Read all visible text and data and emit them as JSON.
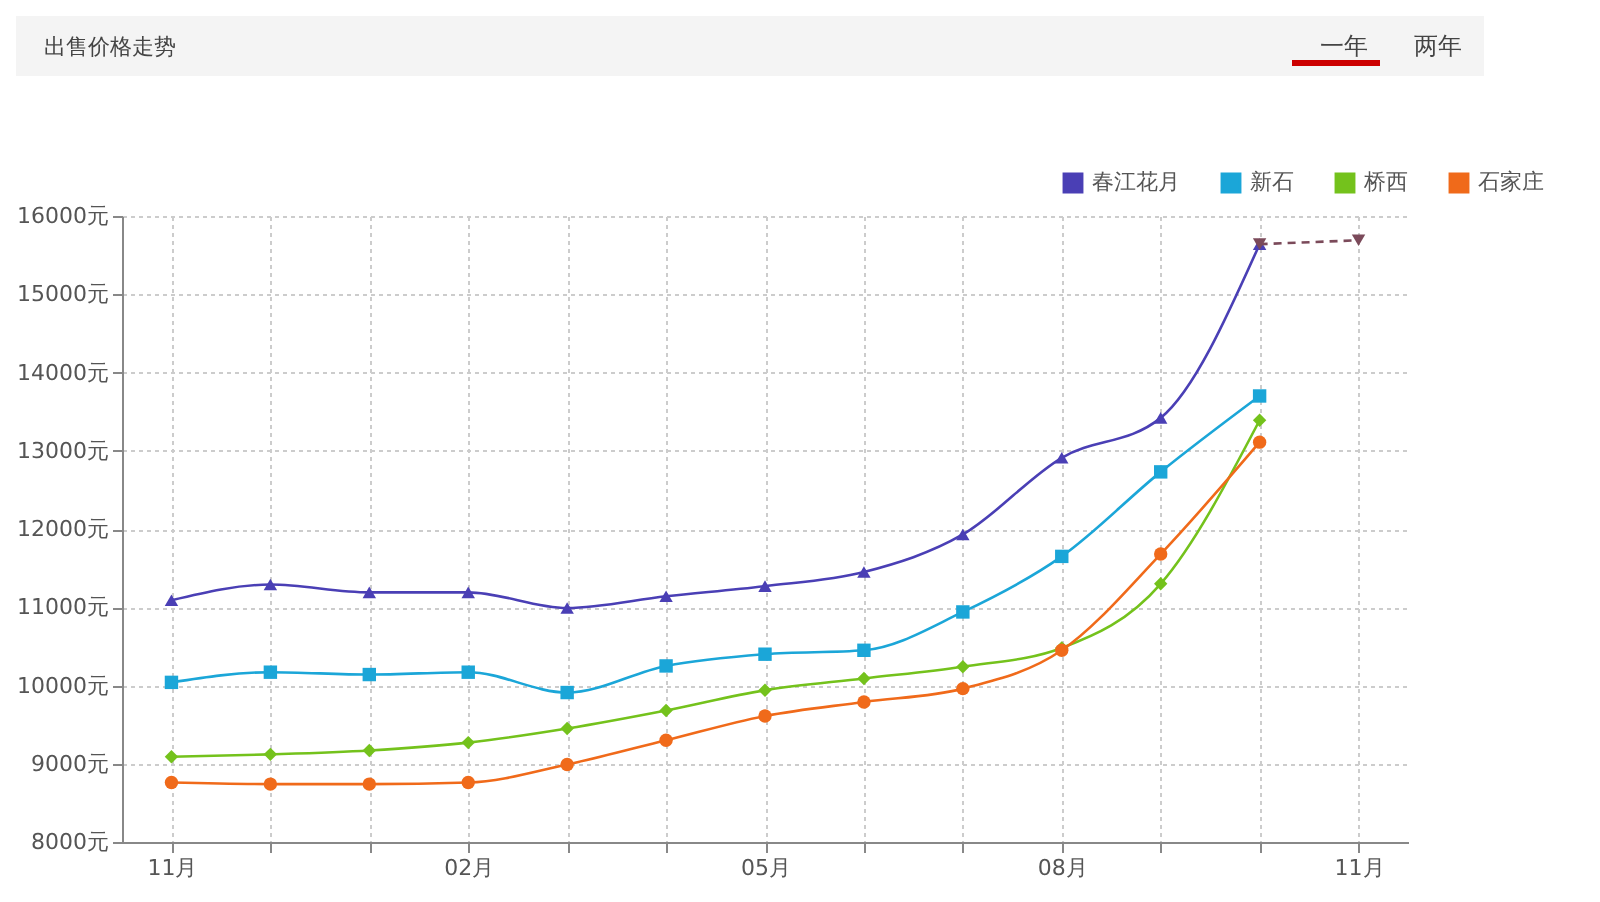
{
  "chart_data": {
    "type": "line",
    "title": "出售价格走势",
    "annotations": [
      "一年",
      "两年"
    ],
    "categories": [
      "11月",
      null,
      null,
      "02月",
      null,
      null,
      "05月",
      null,
      null,
      "08月",
      null,
      null,
      "11月"
    ],
    "series": [
      {
        "name": "春江花月",
        "color": "#4a3fb5",
        "marker": "triangle",
        "values": [
          11090,
          11290,
          11190,
          11190,
          10990,
          11140,
          11270,
          11450,
          11930,
          12910,
          13420,
          15640,
          null
        ]
      },
      {
        "name": "新石",
        "color": "#1ba6d8",
        "marker": "square",
        "values": [
          10040,
          10170,
          10140,
          10170,
          9910,
          10250,
          10400,
          10450,
          10940,
          11650,
          12730,
          13700,
          null
        ]
      },
      {
        "name": "桥西",
        "color": "#74c21c",
        "marker": "diamond",
        "values": [
          9090,
          9120,
          9170,
          9270,
          9450,
          9680,
          9940,
          10090,
          10240,
          10480,
          11300,
          13390,
          null
        ]
      },
      {
        "name": "石家庄",
        "color": "#f06a1a",
        "marker": "circle",
        "values": [
          8760,
          8740,
          8740,
          8760,
          8990,
          9300,
          9610,
          9790,
          9960,
          10450,
          11680,
          13110,
          null
        ]
      },
      {
        "color": "#7b4a5a",
        "marker": "triangle-down",
        "line_style": "dashed",
        "values": [
          null,
          null,
          null,
          null,
          null,
          null,
          null,
          null,
          null,
          null,
          null,
          15640,
          15690
        ]
      }
    ],
    "ylim": [
      8000,
      16000
    ],
    "yticks": [
      {
        "value": 8000,
        "label": "8000元"
      },
      {
        "value": 9000,
        "label": "9000元"
      },
      {
        "value": 10000,
        "label": "10000元"
      },
      {
        "value": 11000,
        "label": "11000元"
      },
      {
        "value": 12000,
        "label": "12000元"
      },
      {
        "value": 13000,
        "label": "13000元"
      },
      {
        "value": 14000,
        "label": "14000元"
      },
      {
        "value": 15000,
        "label": "15000元"
      },
      {
        "value": 16000,
        "label": "16000元"
      }
    ],
    "grid": true,
    "legend": "top right"
  }
}
